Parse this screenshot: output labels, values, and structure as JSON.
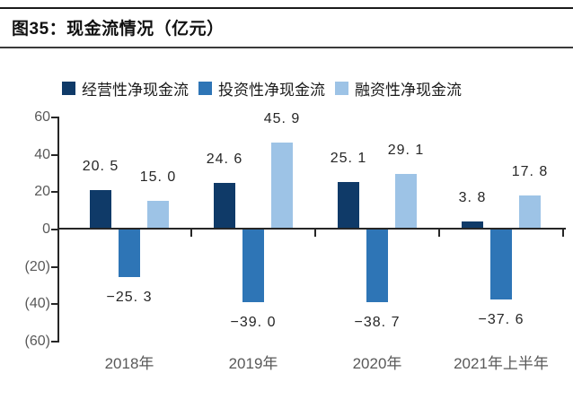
{
  "figure": {
    "title": "图35：现金流情况（亿元）"
  },
  "chart_data": {
    "type": "bar",
    "title": "图35：现金流情况（亿元）",
    "unit": "亿元",
    "categories": [
      "2018年",
      "2019年",
      "2020年",
      "2021年上半年"
    ],
    "series": [
      {
        "name": "经营性净现金流",
        "color": "#0F3A68",
        "values": [
          20.5,
          24.6,
          25.1,
          3.8
        ],
        "value_labels": [
          "20. 5",
          "24. 6",
          "25. 1",
          "3. 8"
        ]
      },
      {
        "name": "投资性净现金流",
        "color": "#2E75B6",
        "values": [
          -25.3,
          -39.0,
          -38.7,
          -37.6
        ],
        "value_labels": [
          "−25. 3",
          "−39. 0",
          "−38. 7",
          "−37. 6"
        ]
      },
      {
        "name": "融资性净现金流",
        "color": "#9DC3E6",
        "values": [
          15.0,
          45.9,
          29.1,
          17.8
        ],
        "value_labels": [
          "15. 0",
          "45. 9",
          "29. 1",
          "17. 8"
        ]
      }
    ],
    "ylim": [
      -60,
      60
    ],
    "ytick_values": [
      60,
      40,
      20,
      0,
      -20,
      -40,
      -60
    ],
    "ytick_labels": [
      "60",
      "40",
      "20",
      "0",
      "(20)",
      "(40)",
      "(60)"
    ],
    "grid": false,
    "legend_position": "top",
    "axis_color": "#262626",
    "tick_label_color": "#595959"
  }
}
